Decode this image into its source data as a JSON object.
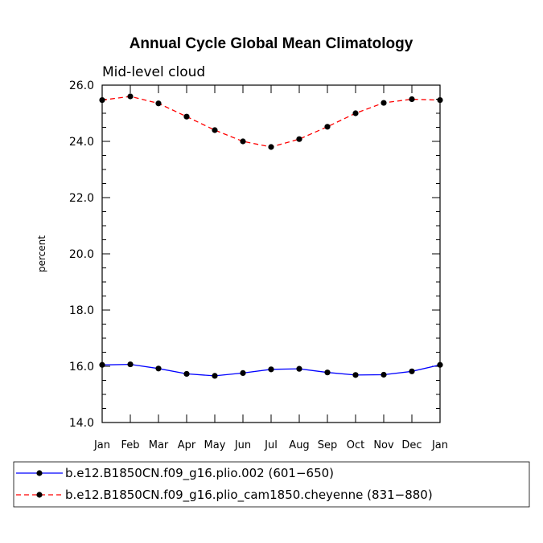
{
  "chart_data": {
    "type": "line",
    "title": "Annual Cycle Global Mean Climatology",
    "subtitle": "Mid-level cloud",
    "xlabel": "",
    "ylabel": "percent",
    "categories": [
      "Jan",
      "Feb",
      "Mar",
      "Apr",
      "May",
      "Jun",
      "Jul",
      "Aug",
      "Sep",
      "Oct",
      "Nov",
      "Dec",
      "Jan"
    ],
    "ylim": [
      14.0,
      26.0
    ],
    "yticks": [
      "14.0",
      "16.0",
      "18.0",
      "20.0",
      "22.0",
      "24.0",
      "26.0"
    ],
    "grid": false,
    "legend_position": "bottom",
    "series": [
      {
        "name": "b.e12.B1850CN.f09_g16.plio.002 (601−650)",
        "color": "#0000ff",
        "dash": "solid",
        "values": [
          16.05,
          16.07,
          15.92,
          15.73,
          15.66,
          15.76,
          15.89,
          15.91,
          15.78,
          15.69,
          15.7,
          15.82,
          16.05
        ]
      },
      {
        "name": "b.e12.B1850CN.f09_g16.plio_cam1850.cheyenne (831−880)",
        "color": "#ff0000",
        "dash": "dashed",
        "values": [
          25.47,
          25.6,
          25.35,
          24.88,
          24.4,
          24.0,
          23.8,
          24.08,
          24.52,
          25.0,
          25.37,
          25.5,
          25.47
        ]
      }
    ]
  }
}
